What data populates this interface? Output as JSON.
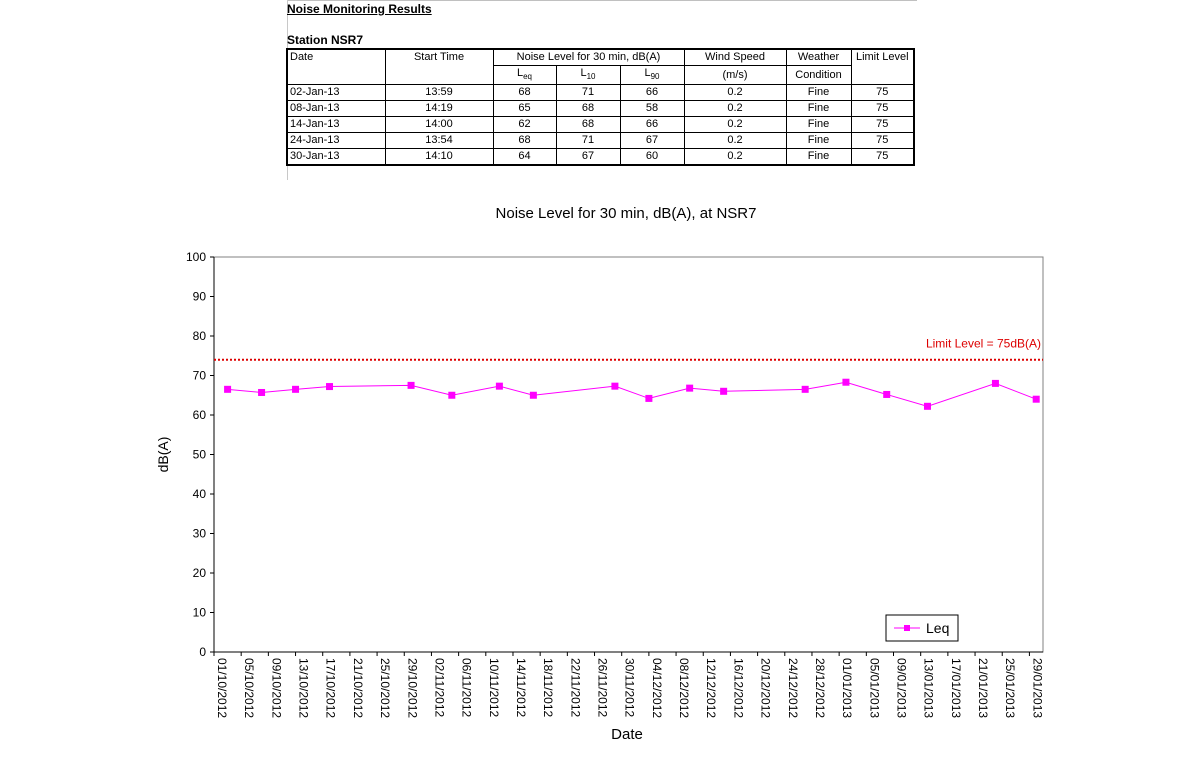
{
  "report": {
    "title": "Noise Monitoring Results",
    "station_title": "Station NSR7"
  },
  "table": {
    "headers": {
      "date": "Date",
      "start_time": "Start Time",
      "noise_level": "Noise Level for 30 min, dB(A)",
      "leq_main": "L",
      "leq_sub": "eq",
      "l10_main": "L",
      "l10_sub": "10",
      "l90_main": "L",
      "l90_sub": "90",
      "wind_speed": "Wind Speed",
      "wind_unit": "(m/s)",
      "weather": "Weather",
      "condition": "Condition",
      "limit": "Limit Level"
    },
    "rows": [
      {
        "date": "02-Jan-13",
        "time": "13:59",
        "leq": "68",
        "l10": "71",
        "l90": "66",
        "wind": "0.2",
        "weather": "Fine",
        "limit": "75"
      },
      {
        "date": "08-Jan-13",
        "time": "14:19",
        "leq": "65",
        "l10": "68",
        "l90": "58",
        "wind": "0.2",
        "weather": "Fine",
        "limit": "75"
      },
      {
        "date": "14-Jan-13",
        "time": "14:00",
        "leq": "62",
        "l10": "68",
        "l90": "66",
        "wind": "0.2",
        "weather": "Fine",
        "limit": "75"
      },
      {
        "date": "24-Jan-13",
        "time": "13:54",
        "leq": "68",
        "l10": "71",
        "l90": "67",
        "wind": "0.2",
        "weather": "Fine",
        "limit": "75"
      },
      {
        "date": "30-Jan-13",
        "time": "14:10",
        "leq": "64",
        "l10": "67",
        "l90": "60",
        "wind": "0.2",
        "weather": "Fine",
        "limit": "75"
      }
    ]
  },
  "chart_data": {
    "type": "line",
    "title": "Noise Level for 30 min, dB(A), at NSR7",
    "xlabel": "Date",
    "ylabel": "dB(A)",
    "ylim": [
      0,
      100
    ],
    "yticks": [
      0,
      10,
      20,
      30,
      40,
      50,
      60,
      70,
      80,
      90,
      100
    ],
    "xlim": [
      "2012-10-01",
      "2013-01-31"
    ],
    "xtick_labels": [
      "01/10/2012",
      "05/10/2012",
      "09/10/2012",
      "13/10/2012",
      "17/10/2012",
      "21/10/2012",
      "25/10/2012",
      "29/10/2012",
      "02/11/2012",
      "06/11/2012",
      "10/11/2012",
      "14/11/2012",
      "18/11/2012",
      "22/11/2012",
      "26/11/2012",
      "30/11/2012",
      "04/12/2012",
      "08/12/2012",
      "12/12/2012",
      "16/12/2012",
      "20/12/2012",
      "24/12/2012",
      "28/12/2012",
      "01/01/2013",
      "05/01/2013",
      "09/01/2013",
      "13/01/2013",
      "17/01/2013",
      "21/01/2013",
      "25/01/2013",
      "29/01/2013"
    ],
    "grid": false,
    "legend": "bottom-right",
    "series": [
      {
        "name": "Leq",
        "color": "#ff00ff",
        "x": [
          "2012-10-03",
          "2012-10-08",
          "2012-10-13",
          "2012-10-18",
          "2012-10-30",
          "2012-11-05",
          "2012-11-12",
          "2012-11-17",
          "2012-11-29",
          "2012-12-04",
          "2012-12-10",
          "2012-12-15",
          "2012-12-27",
          "2013-01-02",
          "2013-01-08",
          "2013-01-14",
          "2013-01-24",
          "2013-01-30"
        ],
        "values": [
          66.5,
          65.7,
          66.5,
          67.2,
          67.5,
          65.0,
          67.3,
          65.0,
          67.3,
          64.2,
          66.8,
          66.0,
          66.5,
          68.3,
          65.2,
          62.2,
          68.0,
          64.0
        ]
      }
    ],
    "annotations": [
      {
        "text": "Limit Level = 75dB(A)",
        "y": 74,
        "color": "#dd0000",
        "style": "dotted"
      }
    ]
  }
}
